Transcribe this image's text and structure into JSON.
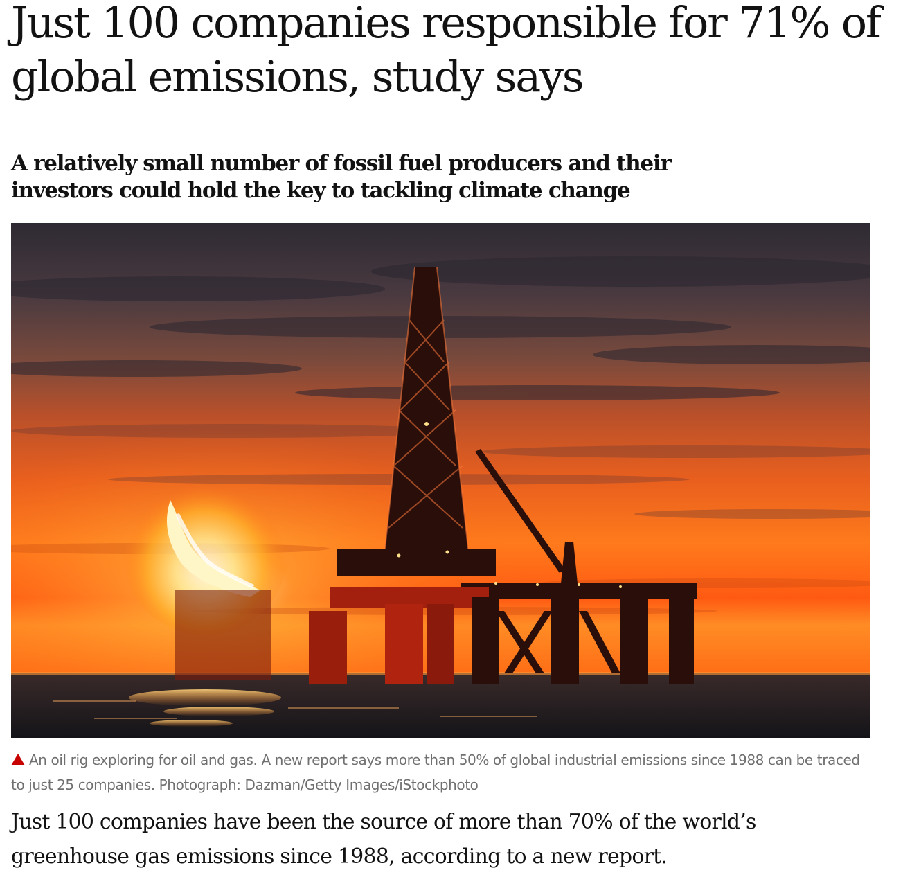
{
  "article": {
    "headline": "Just 100 companies responsible for 71% of global emissions, study says",
    "standfirst": "A relatively small number of fossil fuel producers and their investors could hold the key to tackling climate change",
    "caption": "An oil rig exploring for oil and gas. A new report says more than 50% of global industrial emissions since 1988 can be traced to just 25 companies. Photograph: Dazman/Getty Images/iStockphoto",
    "body_first_paragraph": "Just 100 companies have been the source of more than 70% of the world’s greenhouse gas emissions since 1988, according to a new report."
  },
  "image": {
    "icon": "oil-rig-sunset-photo"
  },
  "colors": {
    "text": "#121212",
    "caption": "#707070",
    "caption_marker": "#c70000",
    "sky_orange": "#ff6a14",
    "sky_dark": "#3a3238"
  }
}
